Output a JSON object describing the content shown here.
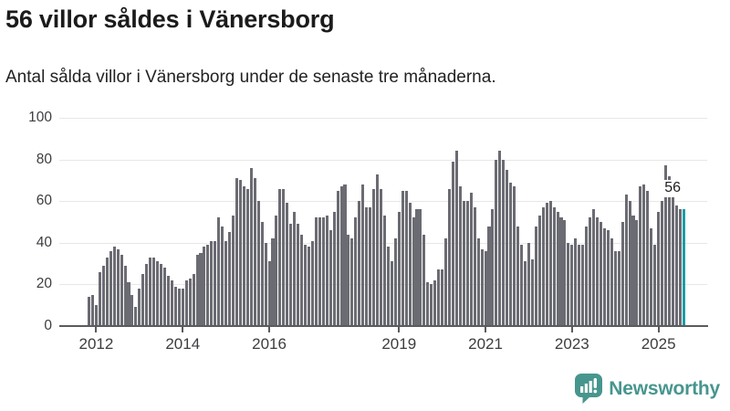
{
  "header": {
    "title": "56 villor såldes i Vänersborg",
    "subtitle": "Antal sålda villor i Vänersborg under de senaste tre månaderna."
  },
  "chart_data": {
    "type": "bar",
    "title": "56 villor såldes i Vänersborg",
    "subtitle": "Antal sålda villor i Vänersborg under de senaste tre månaderna.",
    "xlabel": "",
    "ylabel": "",
    "ylim": [
      0,
      100
    ],
    "grid": true,
    "legend": false,
    "y_ticks": [
      0,
      20,
      40,
      60,
      80,
      100
    ],
    "x_tick_labels": [
      "2012",
      "2014",
      "2016",
      "2019",
      "2021",
      "2023",
      "2025"
    ],
    "x_tick_indices": [
      2,
      26,
      50,
      86,
      110,
      134,
      158
    ],
    "bar_color": "#6b6b73",
    "highlight_color": "#1a9ea6",
    "highlight_index": 165,
    "highlight_label": "56",
    "values": [
      14,
      15,
      10,
      26,
      29,
      33,
      36,
      38,
      37,
      34,
      29,
      21,
      15,
      9,
      18,
      25,
      30,
      33,
      33,
      31,
      30,
      28,
      24,
      22,
      19,
      18,
      18,
      22,
      23,
      25,
      34,
      35,
      38,
      39,
      41,
      41,
      52,
      48,
      41,
      45,
      53,
      71,
      70,
      67,
      66,
      76,
      71,
      60,
      50,
      40,
      31,
      42,
      53,
      66,
      66,
      59,
      49,
      55,
      49,
      44,
      39,
      38,
      41,
      52,
      52,
      52,
      53,
      46,
      55,
      65,
      67,
      68,
      44,
      42,
      52,
      60,
      68,
      57,
      57,
      66,
      73,
      66,
      53,
      38,
      31,
      42,
      55,
      65,
      65,
      59,
      52,
      56,
      56,
      44,
      21,
      20,
      22,
      27,
      27,
      42,
      66,
      79,
      84,
      67,
      60,
      60,
      64,
      57,
      42,
      37,
      36,
      48,
      56,
      80,
      84,
      80,
      75,
      69,
      67,
      48,
      39,
      31,
      40,
      32,
      48,
      53,
      57,
      59,
      60,
      57,
      55,
      52,
      51,
      40,
      39,
      42,
      39,
      39,
      48,
      52,
      56,
      52,
      50,
      47,
      46,
      42,
      36,
      36,
      50,
      63,
      60,
      53,
      51,
      67,
      68,
      65,
      47,
      39,
      55,
      60,
      77,
      72,
      70,
      58,
      56,
      56
    ]
  },
  "footer": {
    "brand": "Newsworthy"
  },
  "colors": {
    "bar_gray": "#6b6b73",
    "highlight_teal": "#1a9ea6",
    "brand_teal": "#47968e",
    "gridline": "#e7e7e7",
    "axis": "#5a5b5e"
  }
}
